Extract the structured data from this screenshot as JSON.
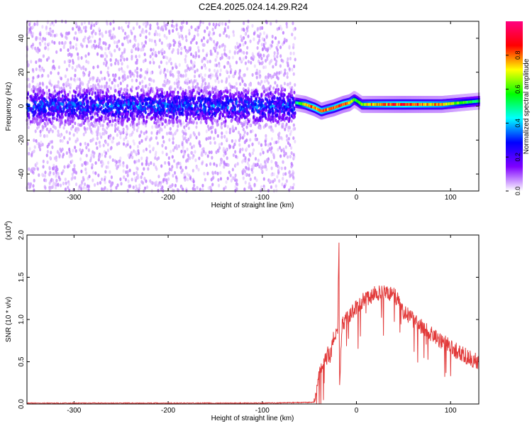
{
  "title": "C2E4.2025.024.14.29.R24",
  "chart_data": [
    {
      "type": "heatmap",
      "title": "C2E4.2025.024.14.29.R24",
      "xlabel": "Height of straight line (km)",
      "ylabel": "Frequency (Hz)",
      "xlim": [
        -350,
        130
      ],
      "ylim": [
        -50,
        50
      ],
      "x_ticks": [
        -300,
        -200,
        -100,
        0,
        100
      ],
      "y_ticks": [
        -40,
        -20,
        0,
        20,
        40
      ],
      "x_tick_labels": [
        "-300",
        "-200",
        "-100",
        "0",
        "100"
      ],
      "y_tick_labels": [
        "-40",
        "-20",
        "0",
        "20",
        "40"
      ],
      "colorbar": {
        "label": "Normalized spectral amplitude",
        "range": [
          0,
          1
        ],
        "ticks": [
          0.0,
          0.2,
          0.4,
          0.6,
          0.8
        ],
        "tick_labels": [
          "0.0",
          "0.2",
          "0.4",
          "0.6",
          "0.8"
        ],
        "colors": [
          "#ffffff",
          "#7f00ff",
          "#0000ff",
          "#00ffff",
          "#00ff00",
          "#ffff00",
          "#ff0000",
          "#ff0080"
        ]
      },
      "noise_region": {
        "x_range": [
          -350,
          -65
        ],
        "center_freq_hz": 0,
        "core_halfwidth_hz": 10,
        "scatter_halfwidth_hz": 50,
        "level": 0.35
      },
      "signal_ridge": {
        "x": [
          -65,
          -55,
          -45,
          -38,
          -32,
          -25,
          -15,
          -8,
          -3,
          0,
          5,
          15,
          30,
          50,
          70,
          90,
          110,
          130
        ],
        "freq_hz": [
          2,
          1,
          -1,
          -3,
          -2,
          -1,
          1,
          2,
          4,
          3,
          1,
          1,
          1,
          1,
          1,
          1,
          2,
          3
        ],
        "amplitude": [
          0.5,
          0.75,
          0.85,
          0.8,
          0.75,
          0.8,
          0.85,
          0.8,
          0.6,
          0.55,
          0.65,
          0.75,
          0.8,
          0.85,
          0.8,
          0.75,
          0.6,
          0.5
        ]
      }
    },
    {
      "type": "line",
      "title": "",
      "xlabel": "Height of straight line (km)",
      "ylabel": "SNR (10 * v/v)",
      "y_multiplier_label": "(x10",
      "y_multiplier_exponent": "4",
      "y_multiplier_close": ")",
      "xlim": [
        -350,
        130
      ],
      "ylim": [
        0,
        2.0
      ],
      "x_ticks": [
        -300,
        -200,
        -100,
        0,
        100
      ],
      "y_ticks": [
        0.0,
        0.5,
        1.0,
        1.5,
        2.0
      ],
      "x_tick_labels": [
        "-300",
        "-200",
        "-100",
        "0",
        "100"
      ],
      "y_tick_labels": [
        "0.0",
        "0.5",
        "1.0",
        "1.5",
        "2.0"
      ],
      "series": [
        {
          "color": "#e23b3b",
          "x": [
            -350,
            -300,
            -200,
            -100,
            -45,
            -42,
            -38,
            -35,
            -30,
            -28,
            -25,
            -22,
            -20,
            -18.5,
            -18,
            -15,
            -10,
            -5,
            0,
            5,
            10,
            15,
            20,
            25,
            30,
            35,
            40,
            45,
            50,
            60,
            70,
            80,
            90,
            100,
            110,
            120,
            125,
            130
          ],
          "y": [
            0.01,
            0.01,
            0.01,
            0.01,
            0.02,
            0.2,
            0.4,
            0.45,
            0.6,
            0.55,
            0.75,
            0.85,
            0.8,
            2.0,
            0.15,
            0.95,
            1.0,
            1.1,
            1.15,
            1.2,
            1.25,
            1.28,
            1.3,
            1.32,
            1.32,
            1.3,
            1.28,
            1.22,
            1.1,
            1.0,
            0.9,
            0.82,
            0.75,
            0.68,
            0.6,
            0.55,
            0.52,
            0.48
          ],
          "noise_amplitude": 0.15,
          "noise_start_x": -45
        }
      ]
    }
  ]
}
